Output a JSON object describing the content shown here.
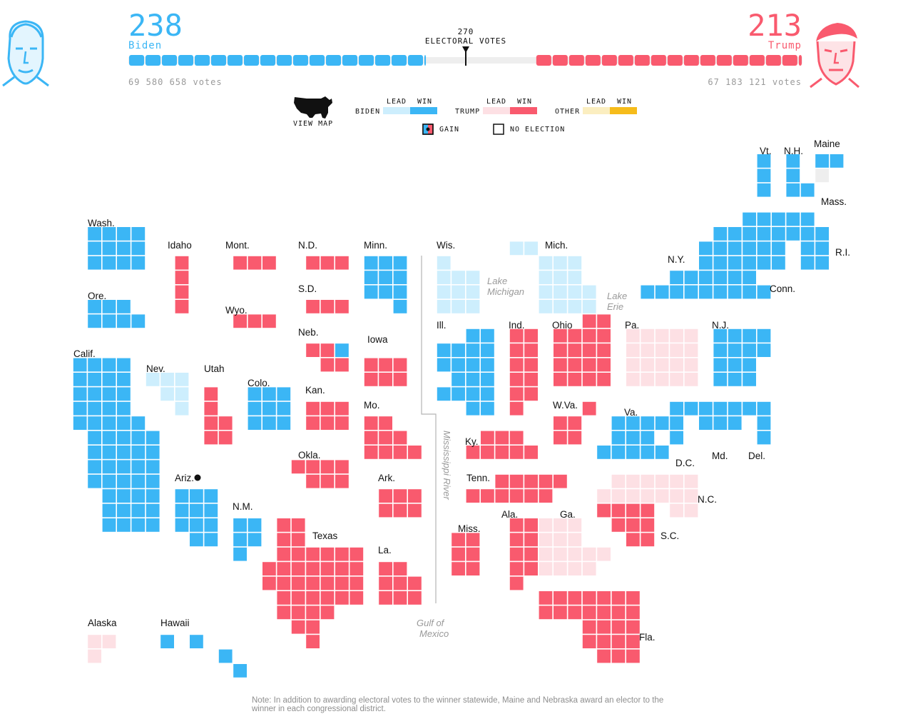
{
  "header": {
    "biden": {
      "score": "238",
      "name": "Biden",
      "votes": "69 580 658 votes",
      "color": "#3bb6f5"
    },
    "trump": {
      "score": "213",
      "name": "Trump",
      "votes": "67 183 121 votes",
      "color": "#f95a6e"
    },
    "threshold_value": "270",
    "threshold_label": "ELECTORAL VOTES",
    "bar": {
      "total": 538,
      "biden_win": 238,
      "trump_win": 213,
      "uncalled": 87,
      "threshold": 270
    }
  },
  "legend": {
    "view_map_label": "VIEW MAP",
    "lead_label": "LEAD",
    "win_label": "WIN",
    "groups": [
      {
        "name": "BIDEN",
        "lead_color": "#cdeefd",
        "win_color": "#3bb6f5"
      },
      {
        "name": "TRUMP",
        "lead_color": "#fde0e4",
        "win_color": "#f95a6e"
      },
      {
        "name": "OTHER",
        "lead_color": "#fbeec0",
        "win_color": "#f6bc1b"
      }
    ],
    "gain_label": "GAIN",
    "no_election_label": "NO ELECTION",
    "no_election_color": "#eeeeee"
  },
  "map": {
    "colors": {
      "biden_win": "#3bb6f5",
      "biden_lead": "#cdeefd",
      "trump_win": "#f95a6e",
      "trump_lead": "#fde0e4",
      "none": "#eeeeee"
    },
    "geo_labels": [
      "Lake Michigan",
      "Lake Erie",
      "Mississippi River",
      "Gulf of Mexico"
    ],
    "states": [
      {
        "abbr": "Wash.",
        "status": "biden_win",
        "ev": 12
      },
      {
        "abbr": "Ore.",
        "status": "biden_win",
        "ev": 7
      },
      {
        "abbr": "Calif.",
        "status": "biden_win",
        "ev": 55
      },
      {
        "abbr": "Idaho",
        "status": "trump_win",
        "ev": 4
      },
      {
        "abbr": "Nev.",
        "status": "biden_lead",
        "ev": 6
      },
      {
        "abbr": "Utah",
        "status": "trump_win",
        "ev": 6
      },
      {
        "abbr": "Ariz.",
        "status": "biden_win",
        "ev": 11
      },
      {
        "abbr": "Mont.",
        "status": "trump_win",
        "ev": 3
      },
      {
        "abbr": "Wyo.",
        "status": "trump_win",
        "ev": 3
      },
      {
        "abbr": "Colo.",
        "status": "biden_win",
        "ev": 9
      },
      {
        "abbr": "N.M.",
        "status": "biden_win",
        "ev": 5
      },
      {
        "abbr": "N.D.",
        "status": "trump_win",
        "ev": 3
      },
      {
        "abbr": "S.D.",
        "status": "trump_win",
        "ev": 3
      },
      {
        "abbr": "Neb.",
        "status": "trump_win",
        "ev": 5
      },
      {
        "abbr": "Kan.",
        "status": "trump_win",
        "ev": 6
      },
      {
        "abbr": "Okla.",
        "status": "trump_win",
        "ev": 7
      },
      {
        "abbr": "Texas",
        "status": "trump_win",
        "ev": 38
      },
      {
        "abbr": "Minn.",
        "status": "biden_win",
        "ev": 10
      },
      {
        "abbr": "Iowa",
        "status": "trump_win",
        "ev": 6
      },
      {
        "abbr": "Mo.",
        "status": "trump_win",
        "ev": 10
      },
      {
        "abbr": "Ark.",
        "status": "trump_win",
        "ev": 6
      },
      {
        "abbr": "La.",
        "status": "trump_win",
        "ev": 8
      },
      {
        "abbr": "Wis.",
        "status": "biden_lead",
        "ev": 10
      },
      {
        "abbr": "Ill.",
        "status": "biden_win",
        "ev": 20
      },
      {
        "abbr": "Mich.",
        "status": "biden_lead",
        "ev": 16
      },
      {
        "abbr": "Ind.",
        "status": "trump_win",
        "ev": 11
      },
      {
        "abbr": "Ohio",
        "status": "trump_win",
        "ev": 18
      },
      {
        "abbr": "Ky.",
        "status": "trump_win",
        "ev": 8
      },
      {
        "abbr": "Tenn.",
        "status": "trump_win",
        "ev": 11
      },
      {
        "abbr": "Miss.",
        "status": "trump_win",
        "ev": 6
      },
      {
        "abbr": "Ala.",
        "status": "trump_win",
        "ev": 9
      },
      {
        "abbr": "Ga.",
        "status": "trump_lead",
        "ev": 16
      },
      {
        "abbr": "Fla.",
        "status": "trump_win",
        "ev": 29
      },
      {
        "abbr": "S.C.",
        "status": "trump_win",
        "ev": 9
      },
      {
        "abbr": "N.C.",
        "status": "trump_lead",
        "ev": 15
      },
      {
        "abbr": "W.Va.",
        "status": "trump_win",
        "ev": 5
      },
      {
        "abbr": "Va.",
        "status": "biden_win",
        "ev": 13
      },
      {
        "abbr": "Pa.",
        "status": "trump_lead",
        "ev": 20
      },
      {
        "abbr": "N.Y.",
        "status": "biden_win",
        "ev": 29
      },
      {
        "abbr": "N.J.",
        "status": "biden_win",
        "ev": 14
      },
      {
        "abbr": "Md.",
        "status": "biden_win",
        "ev": 10
      },
      {
        "abbr": "Del.",
        "status": "biden_win",
        "ev": 3
      },
      {
        "abbr": "D.C.",
        "status": "biden_win",
        "ev": 3
      },
      {
        "abbr": "Conn.",
        "status": "biden_win",
        "ev": 7
      },
      {
        "abbr": "R.I.",
        "status": "biden_win",
        "ev": 4
      },
      {
        "abbr": "Mass.",
        "status": "biden_win",
        "ev": 11
      },
      {
        "abbr": "Vt.",
        "status": "biden_win",
        "ev": 3
      },
      {
        "abbr": "N.H.",
        "status": "biden_win",
        "ev": 4
      },
      {
        "abbr": "Maine",
        "status": "biden_win",
        "ev": 4
      },
      {
        "abbr": "Alaska",
        "status": "trump_lead",
        "ev": 3
      },
      {
        "abbr": "Hawaii",
        "status": "biden_win",
        "ev": 4
      }
    ]
  },
  "note": "Note: In addition to awarding electoral votes to the winner statewide, Maine and Nebraska award an elector to the winner in each congressional district."
}
